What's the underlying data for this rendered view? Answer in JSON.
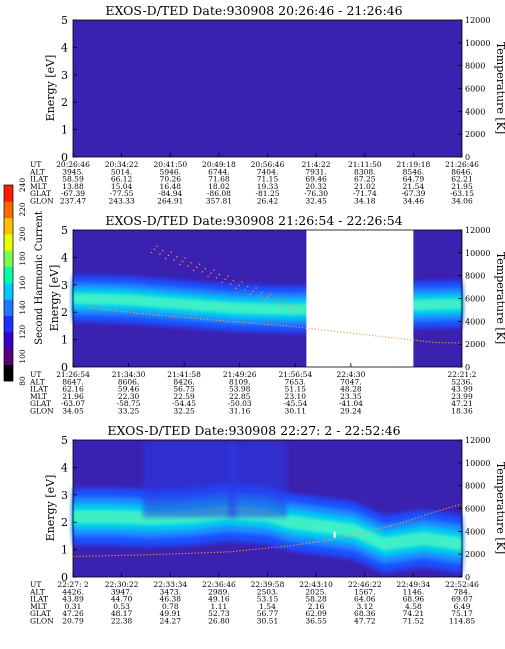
{
  "colorbar": {
    "label": "Second Harmonic Current",
    "ticks": [
      "80",
      "100",
      "120",
      "140",
      "160",
      "180",
      "200",
      "220",
      "240"
    ],
    "colors": [
      "#000000",
      "#5a007a",
      "#3b00c8",
      "#1f2fff",
      "#1f78ff",
      "#00c8ff",
      "#00ffa8",
      "#7cff4a",
      "#e8ff00",
      "#ffc000",
      "#ff6a00",
      "#ff1a00"
    ]
  },
  "chart_data": [
    {
      "type": "heatmap",
      "title": "EXOS-D/TED   Date:930908  20:26:46 - 21:26:46",
      "ylabel": "Energy [eV]",
      "y2label": "Temperature [K]",
      "ylim": [
        0,
        5
      ],
      "y2lim": [
        0,
        12000
      ],
      "yticks": [
        "0",
        "1",
        "2",
        "3",
        "4",
        "5"
      ],
      "y2ticks": [
        "0",
        "2000",
        "4000",
        "6000",
        "8000",
        "10000",
        "12000"
      ],
      "band": null,
      "temperature": null,
      "gaps": [],
      "table": {
        "labels": [
          "UT",
          "ALT",
          "ILAT",
          "MLT",
          "GLAT",
          "GLON"
        ],
        "columns": [
          [
            "20:26:46",
            "3945.",
            "58.59",
            "13.88",
            "-67.39",
            "237.47"
          ],
          [
            "20:34:22",
            "5014.",
            "66.12",
            "15.04",
            "-77.55",
            "243.33"
          ],
          [
            "20:41:50",
            "5946.",
            "70.26",
            "16.48",
            "-84.94",
            "264.91"
          ],
          [
            "20:49:18",
            "6744.",
            "71.68",
            "18.02",
            "-86.08",
            "357.81"
          ],
          [
            "20:56:46",
            "7404.",
            "71.15",
            "19.33",
            "-81.25",
            "26.42"
          ],
          [
            "21:4:22",
            "7931.",
            "69.46",
            "20.32",
            "-76.30",
            "32.45"
          ],
          [
            "21:11:50",
            "8308.",
            "67.25",
            "21.02",
            "-71.74",
            "34.18"
          ],
          [
            "21:19:18",
            "8546.",
            "64.79",
            "21.54",
            "-67.39",
            "34.46"
          ],
          [
            "21:26:46",
            "8646.",
            "62.21",
            "21.95",
            "-63.15",
            "34.06"
          ]
        ]
      }
    },
    {
      "type": "heatmap",
      "title": "EXOS-D/TED   Date:930908  21:26:54 - 22:26:54",
      "ylabel": "Energy [eV]",
      "y2label": "Temperature [K]",
      "ylim": [
        0,
        5
      ],
      "y2lim": [
        0,
        12000
      ],
      "yticks": [
        "0",
        "1",
        "2",
        "3",
        "4",
        "5"
      ],
      "y2ticks": [
        "0",
        "2000",
        "4000",
        "6000",
        "8000",
        "10000",
        "12000"
      ],
      "band": {
        "center": [
          2.5,
          2.45,
          2.3,
          2.15,
          2.1,
          2.15,
          2.25,
          2.3
        ],
        "halfwidth": 0.45,
        "x": [
          0,
          0.14,
          0.28,
          0.42,
          0.56,
          0.7,
          0.84,
          1.0
        ]
      },
      "temperature": {
        "x": [
          0.04,
          0.2,
          0.4,
          0.55,
          0.7,
          0.8,
          0.93,
          1.0
        ],
        "y": [
          5200,
          4600,
          4000,
          3600,
          3400,
          3300,
          2150,
          2100
        ]
      },
      "gaps": [
        [
          0.6,
          0.875
        ]
      ],
      "table": {
        "labels": [
          "UT",
          "ALT",
          "ILAT",
          "MLT",
          "GLAT",
          "GLON"
        ],
        "columns": [
          [
            "21:26:54",
            "8647.",
            "62.16",
            "21.96",
            "-63.07",
            "34.05"
          ],
          [
            "21:34:30",
            "8606.",
            "59.46",
            "22.30",
            "-58.75",
            "33.25"
          ],
          [
            "21:41:58",
            "8426.",
            "56.75",
            "22.59",
            "-54.45",
            "32.25"
          ],
          [
            "21:49:26",
            "8109.",
            "53.98",
            "22.85",
            "-50.03",
            "31.16"
          ],
          [
            "21:56:54",
            "7653.",
            "51.15",
            "23.10",
            "-45.54",
            "30.11"
          ],
          [
            "22:4:30",
            "7047.",
            "48.28",
            "23.35",
            "-41.04",
            "29.24"
          ],
          [
            "",
            "",
            "",
            "",
            "",
            ""
          ],
          [
            "22:21:2",
            "5236.",
            "43.99",
            "23.99",
            "47.21",
            "18.36"
          ]
        ]
      }
    },
    {
      "type": "heatmap",
      "title": "EXOS-D/TED   Date:930908  22:27: 2 - 22:52:46",
      "ylabel": "Energy [eV]",
      "y2label": "Temperature [K]",
      "ylim": [
        0,
        5
      ],
      "y2lim": [
        0,
        12000
      ],
      "yticks": [
        "0",
        "1",
        "2",
        "3",
        "4",
        "5"
      ],
      "y2ticks": [
        "0",
        "2000",
        "4000",
        "6000",
        "8000",
        "10000",
        "12000"
      ],
      "band": {
        "center": [
          2.2,
          2.2,
          2.15,
          2.2,
          2.35,
          2.25,
          2.0,
          1.7,
          1.2,
          1.4,
          1.2
        ],
        "halfwidth": 0.55,
        "x": [
          0,
          0.1,
          0.2,
          0.3,
          0.4,
          0.5,
          0.56,
          0.72,
          0.8,
          0.9,
          1.0
        ]
      },
      "temperature": {
        "x": [
          0.0,
          0.2,
          0.4,
          0.55,
          0.65,
          0.75,
          0.85,
          0.92,
          1.0
        ],
        "y": [
          1800,
          1950,
          2200,
          2700,
          3200,
          3900,
          4800,
          5600,
          6400
        ]
      },
      "gaps": [],
      "table": {
        "labels": [
          "UT",
          "ALT",
          "ILAT",
          "MLT",
          "GLAT",
          "GLON"
        ],
        "columns": [
          [
            "22:27: 2",
            "4426.",
            "43.89",
            "0.31",
            "47.26",
            "20.79"
          ],
          [
            "22:30:22",
            "3947.",
            "44.70",
            "0.53",
            "48.17",
            "22.38"
          ],
          [
            "22:33:34",
            "3473.",
            "46.38",
            "0.78",
            "49.91",
            "24.27"
          ],
          [
            "22:36:46",
            "2989.",
            "49.16",
            "1.11",
            "52.73",
            "26.80"
          ],
          [
            "22:39:58",
            "2503.",
            "53.15",
            "1.54",
            "56.77",
            "30.51"
          ],
          [
            "22:43:10",
            "2025.",
            "58.28",
            "2.16",
            "62.09",
            "36.55"
          ],
          [
            "22:46:22",
            "1567.",
            "64.06",
            "3.12",
            "68.36",
            "47.72"
          ],
          [
            "22:49:34",
            "1146.",
            "68.96",
            "4.58",
            "74.21",
            "71.52"
          ],
          [
            "22:52:46",
            "784.",
            "69.07",
            "6.49",
            "75.17",
            "114.85"
          ]
        ]
      }
    }
  ]
}
